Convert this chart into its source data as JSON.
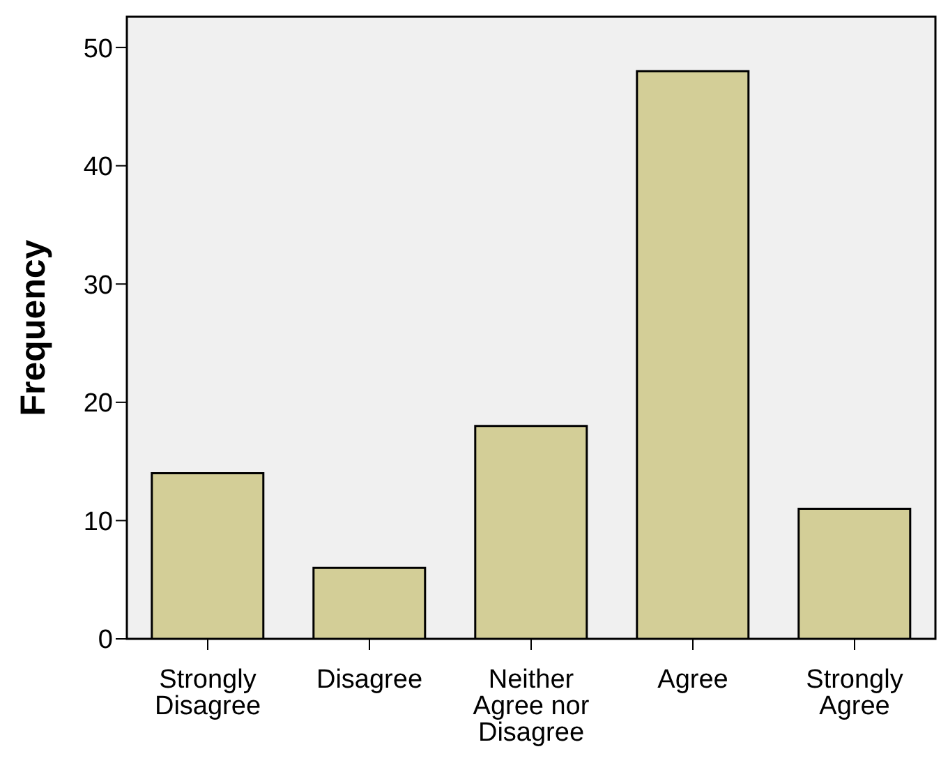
{
  "chart_data": {
    "type": "bar",
    "ylabel": "Frequency",
    "categories": [
      "Strongly Disagree",
      "Disagree",
      "Neither Agree nor Disagree",
      "Agree",
      "Strongly Agree"
    ],
    "values": [
      14,
      6,
      18,
      48,
      11
    ],
    "color": "#d3ce97",
    "ylim": [
      0,
      52.6
    ],
    "yticks": [
      0,
      10,
      20,
      30,
      40,
      50
    ]
  }
}
